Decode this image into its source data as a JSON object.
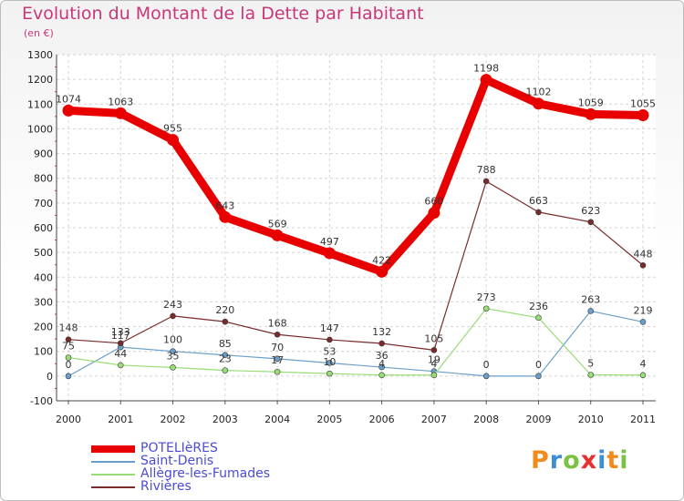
{
  "header": {
    "title": "Evolution du Montant de la Dette par Habitant",
    "subtitle": "(en €)"
  },
  "logo": {
    "text": "Proxiti",
    "colors": [
      "#f08c1e",
      "#3a8fd6",
      "#7cc242",
      "#e8312f",
      "#3a8fd6",
      "#f08c1e",
      "#7cc242"
    ]
  },
  "chart_data": {
    "type": "line",
    "title": "Evolution du Montant de la Dette par Habitant",
    "subtitle": "(en €)",
    "xlabel": "",
    "ylabel": "",
    "x": [
      "2000",
      "2001",
      "2002",
      "2003",
      "2004",
      "2005",
      "2006",
      "2007",
      "2008",
      "2009",
      "2010",
      "2011"
    ],
    "ylim": [
      -100,
      1300
    ],
    "yticks": [
      -100,
      0,
      100,
      200,
      300,
      400,
      500,
      600,
      700,
      800,
      900,
      1000,
      1100,
      1200,
      1300
    ],
    "grid": true,
    "legend_position": "bottom-left",
    "series": [
      {
        "name": "POTELIèRES",
        "color": "#e80000",
        "values": [
          1074,
          1063,
          955,
          643,
          569,
          497,
          422,
          660,
          1198,
          1102,
          1059,
          1055
        ]
      },
      {
        "name": "Saint-Denis",
        "color": "#6a9fcb",
        "values": [
          0,
          117,
          100,
          85,
          70,
          53,
          36,
          19,
          0,
          0,
          263,
          219
        ]
      },
      {
        "name": "Allègre-les-Fumades",
        "color": "#99dd77",
        "values": [
          75,
          44,
          35,
          23,
          17,
          10,
          4,
          4,
          273,
          236,
          5,
          4
        ]
      },
      {
        "name": "Rivières",
        "color": "#7a2a2a",
        "values": [
          148,
          133,
          243,
          220,
          168,
          147,
          132,
          105,
          788,
          663,
          623,
          448
        ]
      }
    ]
  }
}
